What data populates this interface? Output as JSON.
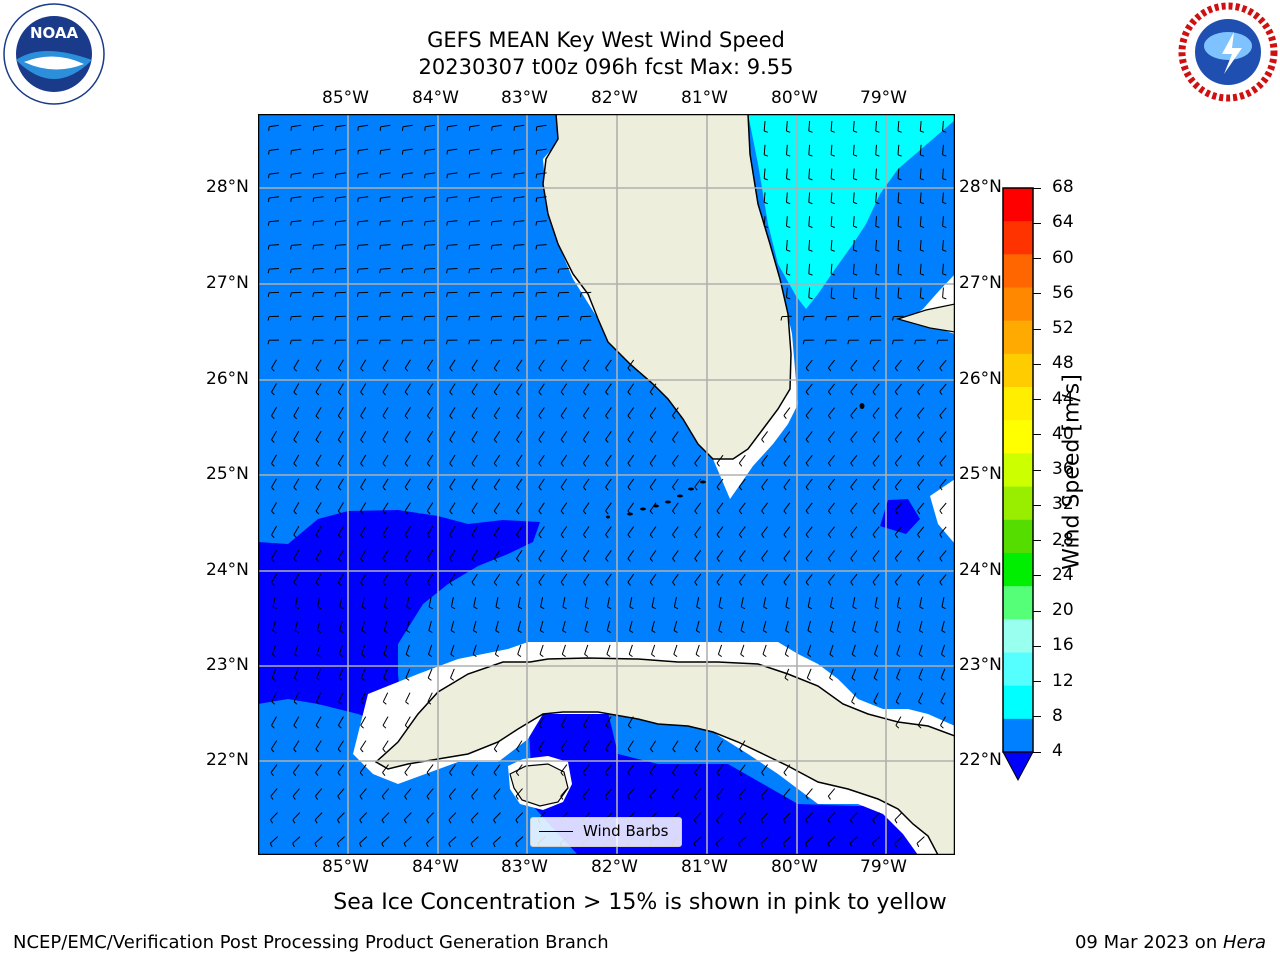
{
  "header": {
    "title_line1": "GEFS MEAN Key West Wind Speed",
    "title_line2": "20230307 t00z 096h fcst   Max: 9.55"
  },
  "logos": {
    "left": {
      "text": "NOAA",
      "ring_text": "NATIONAL OCEANIC AND ATMOSPHERIC ADMINISTRATION · U.S. DEPARTMENT OF COMMERCE"
    },
    "right": {
      "ring_text": "NATIONAL WEATHER SERVICE"
    }
  },
  "map": {
    "lon_labels": [
      "85°W",
      "84°W",
      "83°W",
      "82°W",
      "81°W",
      "80°W",
      "79°W"
    ],
    "lat_labels": [
      "28°N",
      "27°N",
      "26°N",
      "25°N",
      "24°N",
      "23°N",
      "22°N"
    ],
    "legend_label": "Wind Barbs",
    "colors": {
      "ocean_4_8": "#0080ff",
      "ocean_lt4": "#0000ff",
      "ocean_8_12": "#00ffff",
      "land": "#eeeedd",
      "coast_mask": "#ffffff",
      "grid": "#b0b0b0"
    }
  },
  "colorbar": {
    "label": "Wind Speed [m/s]",
    "ticks": [
      "68",
      "64",
      "60",
      "56",
      "52",
      "48",
      "44",
      "40",
      "36",
      "32",
      "28",
      "24",
      "20",
      "16",
      "12",
      "8",
      "4"
    ],
    "colors": [
      "#ff0000",
      "#ff3300",
      "#ff6600",
      "#ff8800",
      "#ffaa00",
      "#ffcc00",
      "#ffee00",
      "#ffff00",
      "#ccff00",
      "#99ee00",
      "#55dd00",
      "#00ee00",
      "#55ff77",
      "#99ffee",
      "#55ffff",
      "#00ffff",
      "#0080ff"
    ],
    "under_color": "#0000ff"
  },
  "notes": {
    "sea_ice": "Sea Ice Concentration > 15% is shown in pink to yellow",
    "credit_left": "NCEP/EMC/Verification Post Processing Product Generation Branch",
    "credit_date": "09 Mar 2023 on ",
    "credit_host": "Hera"
  }
}
